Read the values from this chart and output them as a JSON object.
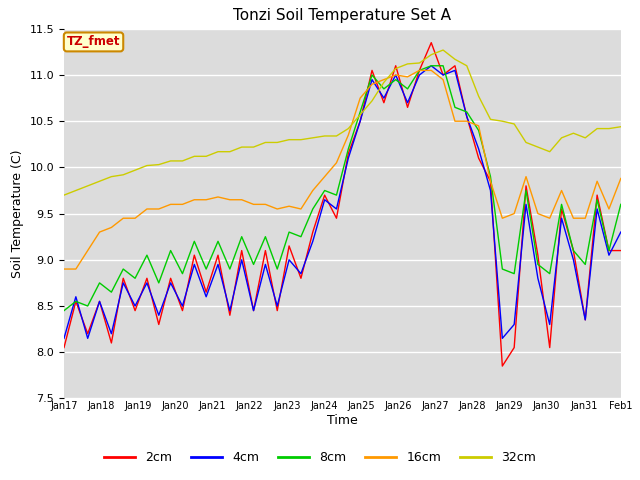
{
  "title": "Tonzi Soil Temperature Set A",
  "xlabel": "Time",
  "ylabel": "Soil Temperature (C)",
  "ylim": [
    7.5,
    11.5
  ],
  "legend_label": "TZ_fmet",
  "series_labels": [
    "2cm",
    "4cm",
    "8cm",
    "16cm",
    "32cm"
  ],
  "series_colors": [
    "#ff0000",
    "#0000ff",
    "#00cc00",
    "#ff9900",
    "#cccc00"
  ],
  "bg_color": "#dcdcdc",
  "x_ticks": [
    "Jan 17",
    "Jan 18",
    "Jan 19",
    "Jan 20",
    "Jan 21",
    "Jan 22",
    "Jan 23",
    "Jan 24",
    "Jan 25",
    "Jan 26",
    "Jan 27",
    "Jan 28",
    "Jan 29",
    "Jan 30",
    "Jan 31",
    "Feb 1"
  ],
  "data_2cm": [
    8.05,
    8.55,
    8.2,
    8.55,
    8.1,
    8.8,
    8.45,
    8.8,
    8.3,
    8.8,
    8.45,
    9.05,
    8.65,
    9.05,
    8.4,
    9.1,
    8.45,
    9.1,
    8.45,
    9.15,
    8.8,
    9.3,
    9.7,
    9.45,
    10.15,
    10.5,
    11.05,
    10.7,
    11.1,
    10.65,
    11.05,
    11.35,
    11.0,
    11.1,
    10.55,
    10.1,
    9.85,
    7.85,
    8.05,
    9.8,
    9.05,
    8.05,
    9.55,
    9.1,
    8.35,
    9.7,
    9.1,
    9.1
  ],
  "data_4cm": [
    8.15,
    8.6,
    8.15,
    8.55,
    8.2,
    8.75,
    8.5,
    8.75,
    8.4,
    8.75,
    8.5,
    8.95,
    8.6,
    8.95,
    8.45,
    9.0,
    8.45,
    8.95,
    8.5,
    9.0,
    8.85,
    9.2,
    9.65,
    9.55,
    10.1,
    10.5,
    10.95,
    10.75,
    11.0,
    10.7,
    11.0,
    11.1,
    11.0,
    11.05,
    10.55,
    10.2,
    9.75,
    8.15,
    8.3,
    9.6,
    8.8,
    8.3,
    9.45,
    9.0,
    8.35,
    9.55,
    9.05,
    9.3
  ],
  "data_8cm": [
    8.45,
    8.55,
    8.5,
    8.75,
    8.65,
    8.9,
    8.8,
    9.05,
    8.75,
    9.1,
    8.85,
    9.2,
    8.9,
    9.2,
    8.9,
    9.25,
    8.95,
    9.25,
    8.9,
    9.3,
    9.25,
    9.55,
    9.75,
    9.7,
    10.2,
    10.6,
    11.0,
    10.85,
    10.95,
    10.85,
    11.05,
    11.1,
    11.1,
    10.65,
    10.6,
    10.4,
    9.9,
    8.9,
    8.85,
    9.75,
    8.95,
    8.85,
    9.6,
    9.1,
    8.95,
    9.65,
    9.1,
    9.6
  ],
  "data_16cm": [
    8.9,
    8.9,
    9.1,
    9.3,
    9.35,
    9.45,
    9.45,
    9.55,
    9.55,
    9.6,
    9.6,
    9.65,
    9.65,
    9.68,
    9.65,
    9.65,
    9.6,
    9.6,
    9.55,
    9.58,
    9.55,
    9.75,
    9.9,
    10.05,
    10.35,
    10.75,
    10.9,
    10.95,
    11.0,
    10.98,
    11.05,
    11.05,
    10.95,
    10.5,
    10.5,
    10.45,
    9.85,
    9.45,
    9.5,
    9.9,
    9.5,
    9.45,
    9.75,
    9.45,
    9.45,
    9.85,
    9.55,
    9.88
  ],
  "data_32cm": [
    9.7,
    9.75,
    9.8,
    9.85,
    9.9,
    9.92,
    9.97,
    10.02,
    10.03,
    10.07,
    10.07,
    10.12,
    10.12,
    10.17,
    10.17,
    10.22,
    10.22,
    10.27,
    10.27,
    10.3,
    10.3,
    10.32,
    10.34,
    10.34,
    10.42,
    10.57,
    10.72,
    10.92,
    11.07,
    11.12,
    11.13,
    11.22,
    11.27,
    11.17,
    11.1,
    10.77,
    10.52,
    10.5,
    10.47,
    10.27,
    10.22,
    10.17,
    10.32,
    10.37,
    10.32,
    10.42,
    10.42,
    10.44
  ]
}
